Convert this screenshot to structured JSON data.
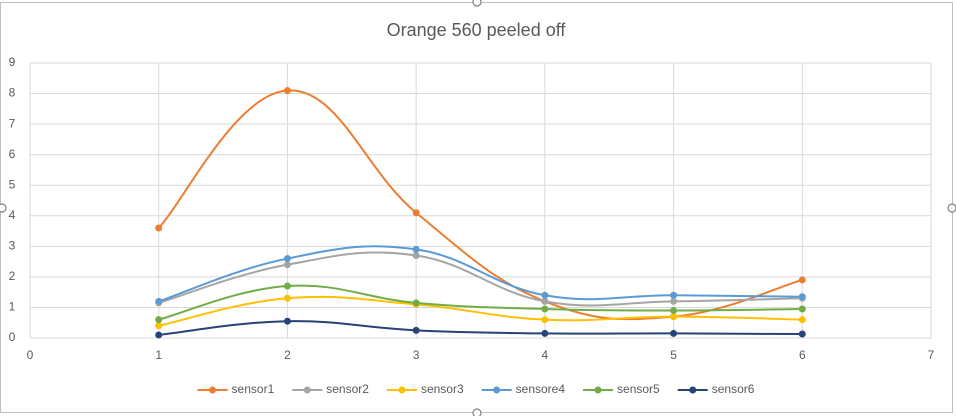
{
  "chart_data": {
    "type": "scatter-smooth",
    "title": "Orange 560 peeled off",
    "x": [
      1,
      2,
      3,
      4,
      5,
      6
    ],
    "series": [
      {
        "name": "sensor1",
        "color": "#ED7D31",
        "values": [
          3.6,
          8.1,
          4.1,
          1.2,
          0.7,
          1.9
        ]
      },
      {
        "name": "sensor2",
        "color": "#A5A5A5",
        "values": [
          1.15,
          2.4,
          2.7,
          1.2,
          1.2,
          1.3
        ]
      },
      {
        "name": "sensor3",
        "color": "#FFC000",
        "values": [
          0.4,
          1.3,
          1.1,
          0.6,
          0.7,
          0.6
        ]
      },
      {
        "name": "sensore4",
        "color": "#5B9BD5",
        "values": [
          1.2,
          2.6,
          2.9,
          1.4,
          1.4,
          1.35
        ]
      },
      {
        "name": "sensor5",
        "color": "#70AD47",
        "values": [
          0.6,
          1.7,
          1.15,
          0.95,
          0.9,
          0.95
        ]
      },
      {
        "name": "sensor6",
        "color": "#264478",
        "values": [
          0.1,
          0.55,
          0.25,
          0.15,
          0.15,
          0.13
        ]
      }
    ],
    "xlim": [
      0,
      7
    ],
    "xticks": [
      0,
      1,
      2,
      3,
      4,
      5,
      6,
      7
    ],
    "ylim": [
      0,
      9
    ],
    "yticks": [
      0,
      1,
      2,
      3,
      4,
      5,
      6,
      7,
      8,
      9
    ],
    "grid": true,
    "legend": "bottom"
  }
}
